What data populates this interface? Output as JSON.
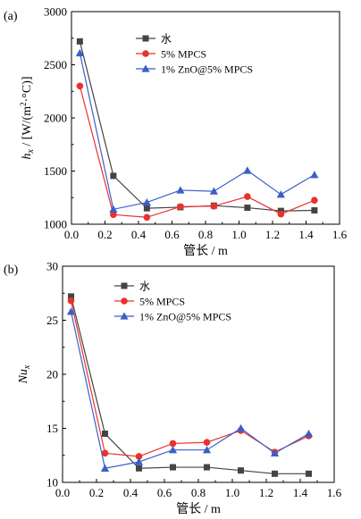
{
  "chart_data": [
    {
      "type": "line",
      "panel_label": "(a)",
      "ylabel": "h_x / [W/(m²·°C)]",
      "ylabel_parts": {
        "main": "h",
        "sub": "x",
        "slash": " / ",
        "unit_a": "[W/(m",
        "unit_sup": "2",
        "unit_b": "·°C)]"
      },
      "xlabel": "管长 / m",
      "xlim": [
        0.0,
        1.6
      ],
      "ylim": [
        1000,
        3000
      ],
      "xticks": [
        "0.0",
        "0.2",
        "0.4",
        "0.6",
        "0.8",
        "1.0",
        "1.2",
        "1.4",
        "1.6"
      ],
      "yticks": [
        "1000",
        "1500",
        "2000",
        "2500",
        "3000"
      ],
      "legend": "top-right",
      "grid": false,
      "x": [
        0.05,
        0.25,
        0.45,
        0.65,
        0.85,
        1.05,
        1.25,
        1.45
      ],
      "series": [
        {
          "name": "水",
          "color": "#444444",
          "marker": "square",
          "values": [
            2720,
            1455,
            1150,
            1160,
            1175,
            1155,
            1125,
            1130
          ]
        },
        {
          "name": "5% MPCS",
          "color": "#e8322d",
          "marker": "circle",
          "values": [
            2300,
            1090,
            1065,
            1165,
            1170,
            1260,
            1095,
            1225
          ]
        },
        {
          "name": "1% ZnO@5% MPCS",
          "color": "#3a5fc8",
          "marker": "triangle",
          "values": [
            2610,
            1140,
            1205,
            1320,
            1310,
            1505,
            1280,
            1465
          ]
        }
      ]
    },
    {
      "type": "line",
      "panel_label": "(b)",
      "ylabel": "Nu_x",
      "ylabel_parts": {
        "main": "Nu",
        "sub": "x"
      },
      "xlabel": "管长 / m",
      "xlim": [
        0.0,
        1.6
      ],
      "ylim": [
        10,
        30
      ],
      "xticks": [
        "0.0",
        "0.2",
        "0.4",
        "0.6",
        "0.8",
        "1.0",
        "1.2",
        "1.4",
        "1.6"
      ],
      "yticks": [
        "10",
        "15",
        "20",
        "25",
        "30"
      ],
      "legend": "top-right",
      "grid": false,
      "x": [
        0.05,
        0.25,
        0.45,
        0.65,
        0.85,
        1.05,
        1.25,
        1.45
      ],
      "series": [
        {
          "name": "水",
          "color": "#444444",
          "marker": "square",
          "values": [
            27.2,
            14.5,
            11.3,
            11.4,
            11.4,
            11.1,
            10.8,
            10.8
          ]
        },
        {
          "name": "5% MPCS",
          "color": "#e8322d",
          "marker": "circle",
          "values": [
            26.8,
            12.7,
            12.4,
            13.6,
            13.7,
            14.8,
            12.8,
            14.3
          ]
        },
        {
          "name": "1% ZnO@5% MPCS",
          "color": "#3a5fc8",
          "marker": "triangle",
          "values": [
            25.8,
            11.3,
            11.9,
            13.0,
            13.0,
            15.0,
            12.7,
            14.5
          ]
        }
      ]
    }
  ]
}
